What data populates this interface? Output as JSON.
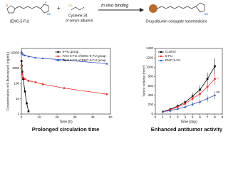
{
  "top": {
    "drug_label": "(EMC-5-FU)",
    "protein_label": "Cysteine-34",
    "protein_label2": "of serum albumin",
    "arrow_label": "In vivo binding",
    "product_label": "Drug-albumin conjugate nanomedicine"
  },
  "chart_data": [
    {
      "type": "line",
      "caption": "Prolonged circulation time",
      "xlabel": "Time (h)",
      "ylabel": "Concentration of 5-fluorouracil (ng/mL)",
      "log_scale": true,
      "xlim": [
        0,
        50
      ],
      "xticks": [
        0,
        10,
        20,
        30,
        40,
        50
      ],
      "ylim": [
        1,
        20000
      ],
      "yticks": [
        1,
        10,
        100,
        1000,
        10000
      ],
      "legend": "upper right",
      "series": [
        {
          "name": "5-FU group",
          "color": "#000000",
          "x": [
            0.083,
            0.25,
            0.5,
            1,
            2,
            3,
            4
          ],
          "values": [
            3000,
            1500,
            600,
            200,
            30,
            5,
            1.5
          ]
        },
        {
          "name": "Free 5-FU of EMC-5-FU group",
          "color": "#e8322e",
          "x": [
            0.083,
            0.5,
            1,
            2,
            4,
            8,
            12,
            24,
            48
          ],
          "values": [
            1500,
            400,
            250,
            200,
            150,
            120,
            90,
            50,
            20
          ]
        },
        {
          "name": "Total 5-FU of EMC-5-FU group",
          "color": "#2f4fb5",
          "x": [
            0.083,
            0.5,
            1,
            2,
            4,
            8,
            12,
            24,
            48
          ],
          "values": [
            12000,
            9000,
            8000,
            7000,
            6000,
            5000,
            4500,
            3500,
            2000
          ]
        }
      ]
    },
    {
      "type": "line",
      "caption": "Enhanced antitumor activity",
      "xlabel": "Time (day)",
      "ylabel": "Tumor volume (mm³)",
      "log_scale": false,
      "xlim": [
        0,
        9
      ],
      "xticks": [
        0,
        1,
        2,
        3,
        4,
        5,
        6,
        7,
        8,
        9
      ],
      "ylim": [
        0,
        1400
      ],
      "yticks": [
        0,
        200,
        400,
        600,
        800,
        1000,
        1200,
        1400
      ],
      "legend": "upper left",
      "annotations": [
        "##",
        "*"
      ],
      "series": [
        {
          "name": "Control",
          "color": "#000000",
          "x": [
            1,
            2,
            3,
            4,
            5,
            6,
            7,
            8
          ],
          "values": [
            50,
            100,
            170,
            250,
            380,
            520,
            750,
            1020
          ],
          "errors": [
            10,
            20,
            35,
            50,
            70,
            90,
            130,
            170
          ]
        },
        {
          "name": "5-FU",
          "color": "#e8322e",
          "x": [
            1,
            2,
            3,
            4,
            5,
            6,
            7,
            8
          ],
          "values": [
            50,
            90,
            150,
            220,
            330,
            430,
            580,
            750
          ],
          "errors": [
            10,
            20,
            30,
            45,
            60,
            75,
            100,
            130
          ]
        },
        {
          "name": "EMC-5-FU",
          "color": "#2f4fb5",
          "x": [
            1,
            2,
            3,
            4,
            5,
            6,
            7,
            8
          ],
          "values": [
            50,
            70,
            110,
            150,
            210,
            260,
            330,
            400
          ],
          "errors": [
            10,
            15,
            25,
            35,
            45,
            55,
            70,
            90
          ]
        }
      ]
    }
  ]
}
